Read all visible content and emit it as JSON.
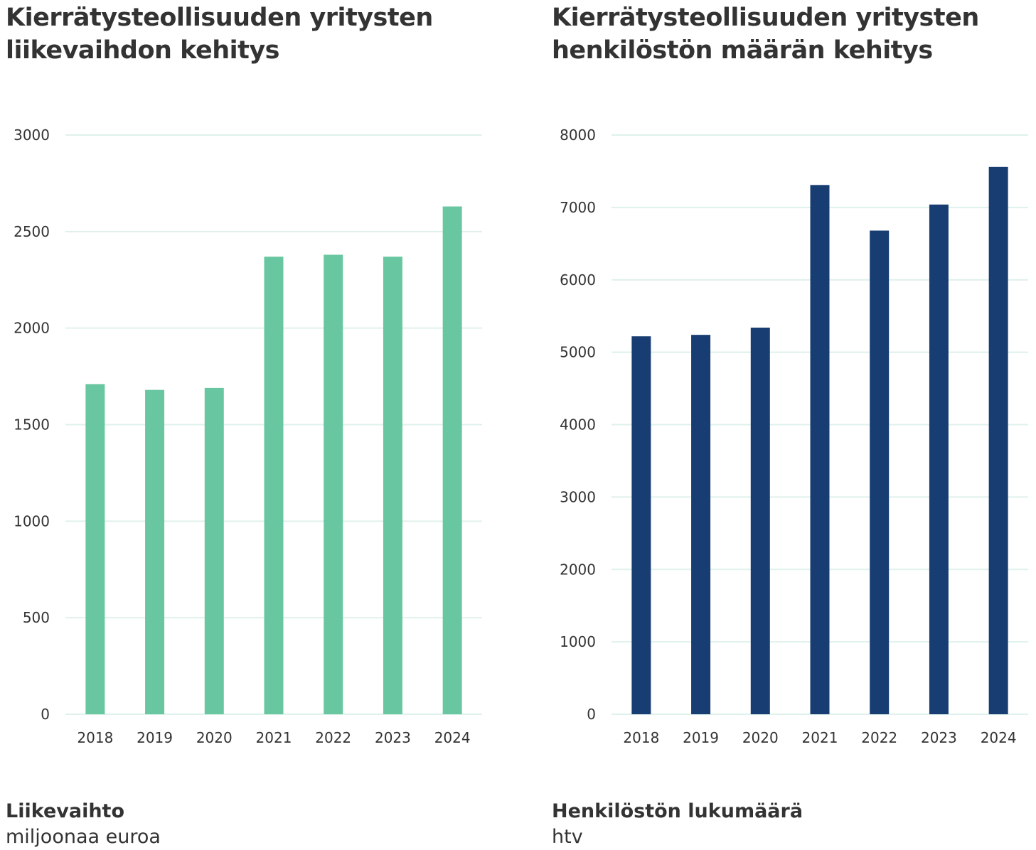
{
  "chart_data": [
    {
      "type": "bar",
      "title": "Kierrätysteollisuuden yritysten liikevaihdon kehitys",
      "series_label": "Liikevaihto",
      "unit_label": "miljoonaa euroa",
      "categories": [
        "2018",
        "2019",
        "2020",
        "2021",
        "2022",
        "2023",
        "2024"
      ],
      "values": [
        1710,
        1680,
        1690,
        2370,
        2380,
        2370,
        2630
      ],
      "ylim": [
        0,
        3000
      ],
      "yticks": [
        0,
        500,
        1000,
        1500,
        2000,
        2500,
        3000
      ],
      "grid": true,
      "bar_color": "#68c7a0",
      "grid_color": "#dff1ec"
    },
    {
      "type": "bar",
      "title": "Kierrätysteollisuuden yritysten henkilöstön määrän kehitys",
      "series_label": "Henkilöstön lukumäärä",
      "unit_label": "htv",
      "categories": [
        "2018",
        "2019",
        "2020",
        "2021",
        "2022",
        "2023",
        "2024"
      ],
      "values": [
        5220,
        5240,
        5340,
        7310,
        6680,
        7040,
        7560
      ],
      "ylim": [
        0,
        8000
      ],
      "yticks": [
        0,
        1000,
        2000,
        3000,
        4000,
        5000,
        6000,
        7000,
        8000
      ],
      "grid": true,
      "bar_color": "#183d72",
      "grid_color": "#dff1ec"
    }
  ]
}
